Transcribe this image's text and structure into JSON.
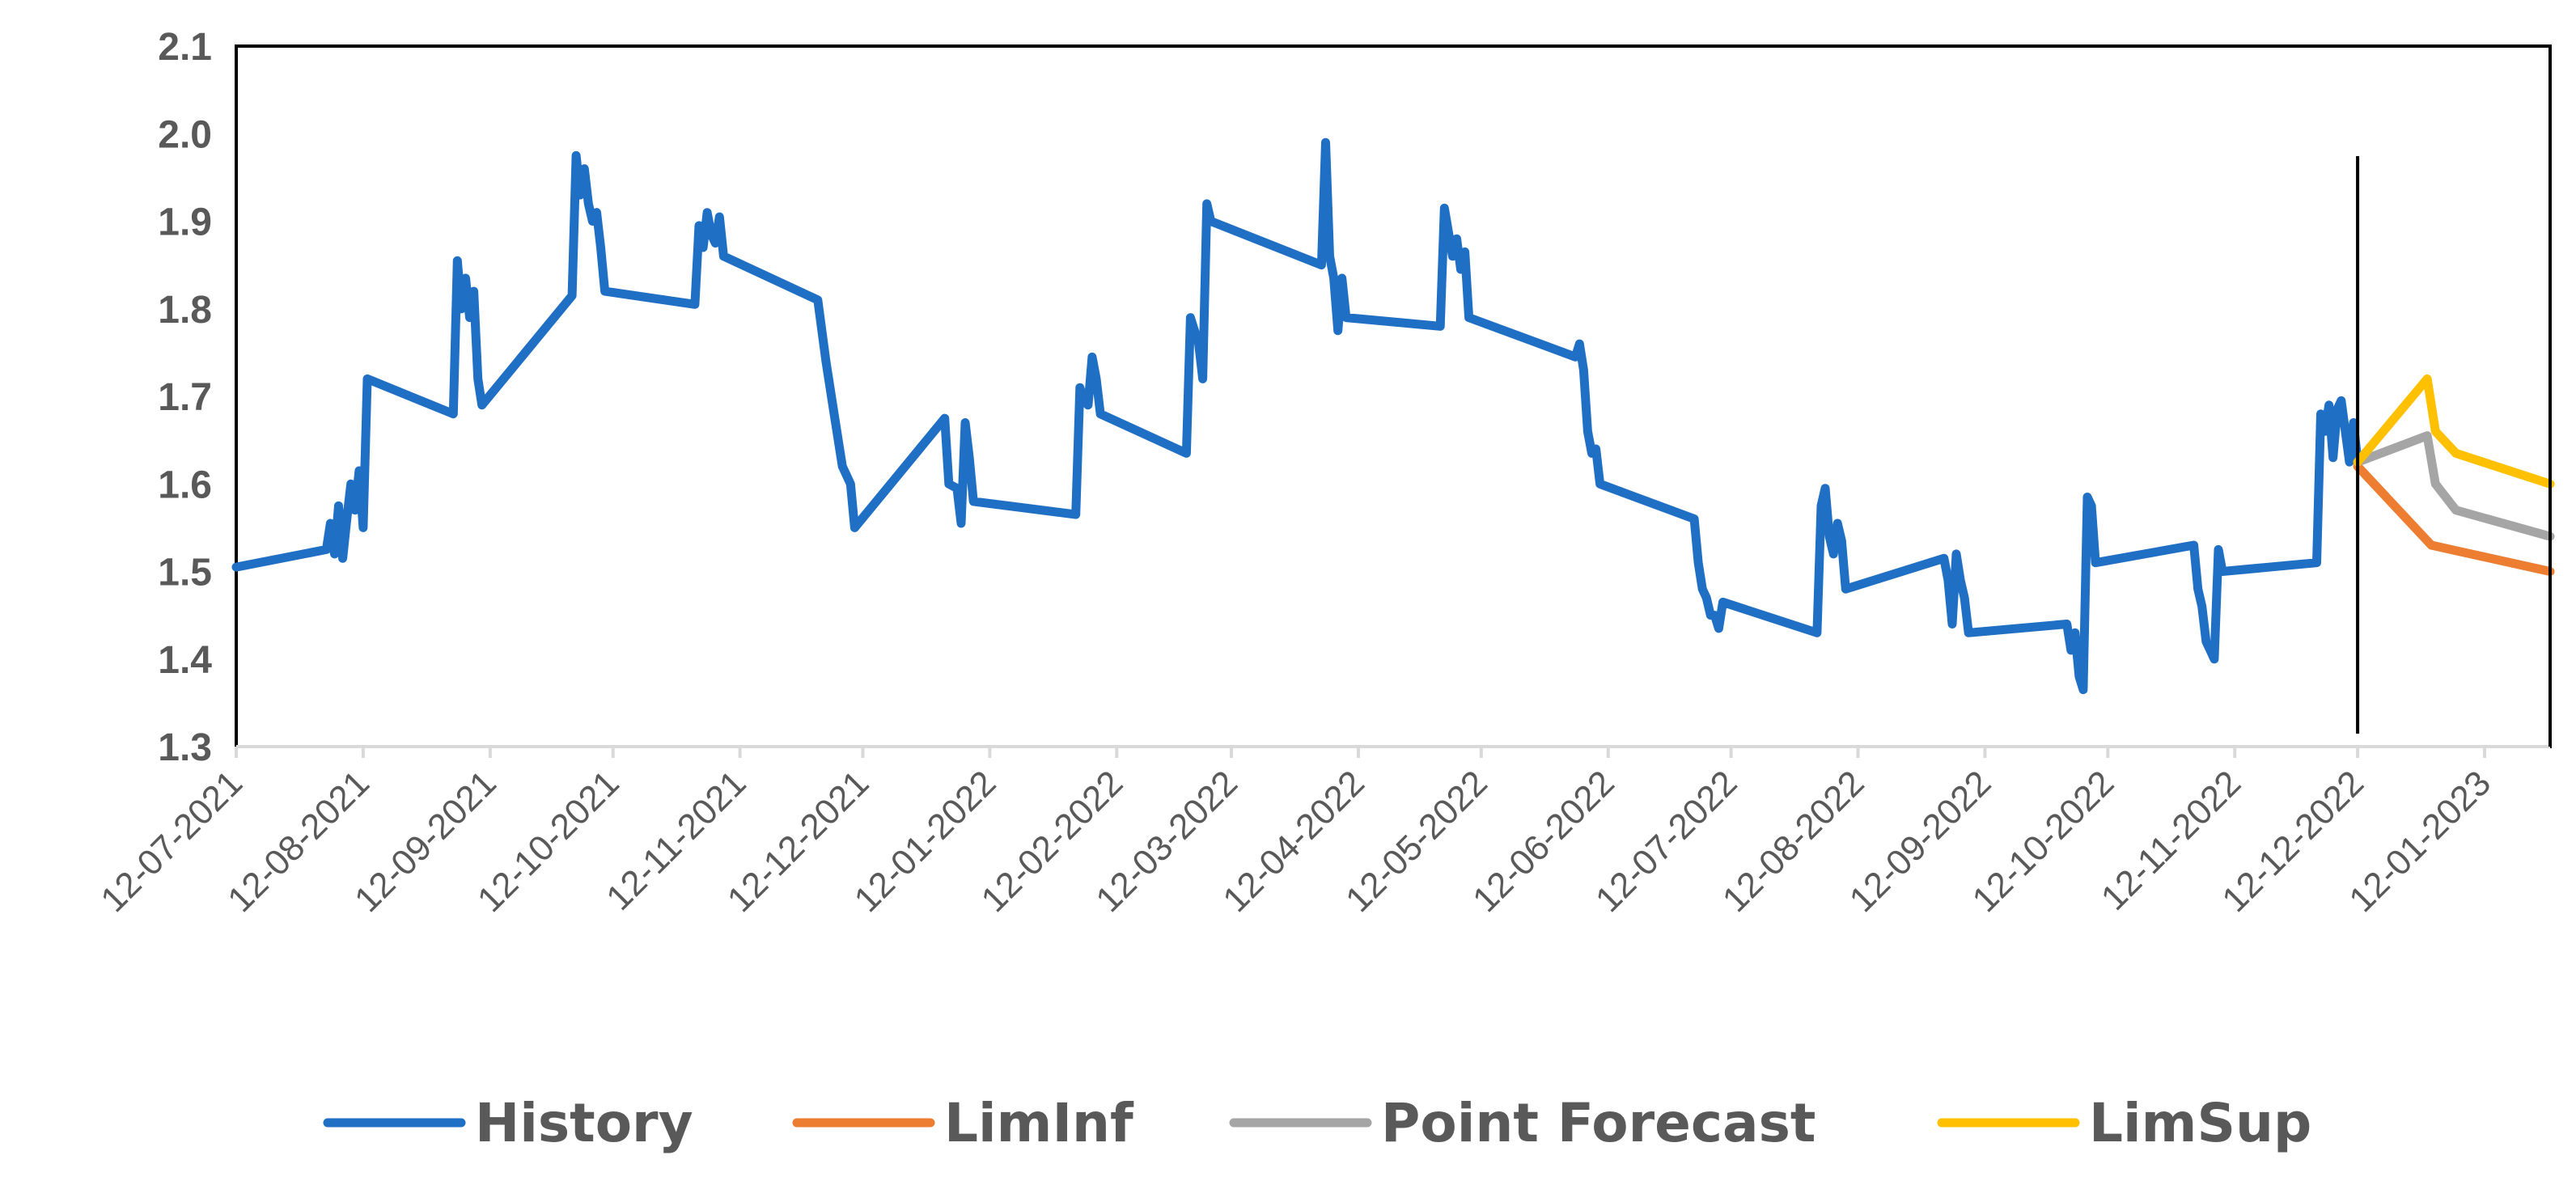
{
  "chart_data": {
    "type": "line",
    "ylim": [
      1.3,
      2.1
    ],
    "yticks": [
      "2.1",
      "2.0",
      "1.9",
      "1.8",
      "1.7",
      "1.6",
      "1.5",
      "1.4",
      "1.3"
    ],
    "yticks_values": [
      2.1,
      2.0,
      1.9,
      1.8,
      1.7,
      1.6,
      1.5,
      1.4,
      1.3
    ],
    "xlim": [
      "2021-07-12",
      "2023-01-28"
    ],
    "xticks": [
      "12-07-2021",
      "12-08-2021",
      "12-09-2021",
      "12-10-2021",
      "12-11-2021",
      "12-12-2021",
      "12-01-2022",
      "12-02-2022",
      "12-03-2022",
      "12-04-2022",
      "12-05-2022",
      "12-06-2022",
      "12-07-2022",
      "12-08-2022",
      "12-09-2022",
      "12-10-2022",
      "12-11-2022",
      "12-12-2022",
      "12-01-2023"
    ],
    "xticks_dates": [
      "2021-07-12",
      "2021-08-12",
      "2021-09-12",
      "2021-10-12",
      "2021-11-12",
      "2021-12-12",
      "2022-01-12",
      "2022-02-12",
      "2022-03-12",
      "2022-04-12",
      "2022-05-12",
      "2022-06-12",
      "2022-07-12",
      "2022-08-12",
      "2022-09-12",
      "2022-10-12",
      "2022-11-12",
      "2022-12-12",
      "2023-01-12"
    ],
    "forecast_start": "2022-12-12",
    "grid": false,
    "legend_position": "bottom",
    "series": [
      {
        "name": "History",
        "color": "#1F6FC5",
        "points": [
          [
            "2021-07-12",
            1.505
          ],
          [
            "2021-08-03",
            1.525
          ],
          [
            "2021-08-04",
            1.555
          ],
          [
            "2021-08-05",
            1.52
          ],
          [
            "2021-08-06",
            1.575
          ],
          [
            "2021-08-07",
            1.515
          ],
          [
            "2021-08-08",
            1.56
          ],
          [
            "2021-08-09",
            1.6
          ],
          [
            "2021-08-10",
            1.57
          ],
          [
            "2021-08-11",
            1.615
          ],
          [
            "2021-08-12",
            1.55
          ],
          [
            "2021-08-13",
            1.72
          ],
          [
            "2021-09-03",
            1.68
          ],
          [
            "2021-09-04",
            1.855
          ],
          [
            "2021-09-05",
            1.8
          ],
          [
            "2021-09-06",
            1.835
          ],
          [
            "2021-09-07",
            1.79
          ],
          [
            "2021-09-08",
            1.82
          ],
          [
            "2021-09-09",
            1.72
          ],
          [
            "2021-09-10",
            1.69
          ],
          [
            "2021-10-02",
            1.815
          ],
          [
            "2021-10-03",
            1.975
          ],
          [
            "2021-10-04",
            1.93
          ],
          [
            "2021-10-05",
            1.96
          ],
          [
            "2021-10-06",
            1.92
          ],
          [
            "2021-10-07",
            1.9
          ],
          [
            "2021-10-08",
            1.91
          ],
          [
            "2021-10-09",
            1.87
          ],
          [
            "2021-10-10",
            1.82
          ],
          [
            "2021-11-01",
            1.805
          ],
          [
            "2021-11-02",
            1.895
          ],
          [
            "2021-11-03",
            1.87
          ],
          [
            "2021-11-04",
            1.91
          ],
          [
            "2021-11-05",
            1.885
          ],
          [
            "2021-11-06",
            1.875
          ],
          [
            "2021-11-07",
            1.905
          ],
          [
            "2021-11-08",
            1.86
          ],
          [
            "2021-12-01",
            1.81
          ],
          [
            "2021-12-03",
            1.74
          ],
          [
            "2021-12-05",
            1.68
          ],
          [
            "2021-12-07",
            1.62
          ],
          [
            "2021-12-09",
            1.6
          ],
          [
            "2021-12-10",
            1.55
          ],
          [
            "2022-01-01",
            1.675
          ],
          [
            "2022-01-02",
            1.6
          ],
          [
            "2022-01-04",
            1.595
          ],
          [
            "2022-01-05",
            1.555
          ],
          [
            "2022-01-06",
            1.67
          ],
          [
            "2022-01-07",
            1.63
          ],
          [
            "2022-01-08",
            1.58
          ],
          [
            "2022-02-02",
            1.565
          ],
          [
            "2022-02-03",
            1.71
          ],
          [
            "2022-02-04",
            1.695
          ],
          [
            "2022-02-05",
            1.69
          ],
          [
            "2022-02-06",
            1.745
          ],
          [
            "2022-02-07",
            1.72
          ],
          [
            "2022-02-08",
            1.68
          ],
          [
            "2022-03-01",
            1.635
          ],
          [
            "2022-03-02",
            1.79
          ],
          [
            "2022-03-04",
            1.76
          ],
          [
            "2022-03-05",
            1.72
          ],
          [
            "2022-03-06",
            1.92
          ],
          [
            "2022-03-07",
            1.9
          ],
          [
            "2022-04-03",
            1.85
          ],
          [
            "2022-04-04",
            1.99
          ],
          [
            "2022-04-05",
            1.86
          ],
          [
            "2022-04-06",
            1.835
          ],
          [
            "2022-04-07",
            1.775
          ],
          [
            "2022-04-08",
            1.835
          ],
          [
            "2022-04-09",
            1.79
          ],
          [
            "2022-05-02",
            1.78
          ],
          [
            "2022-05-03",
            1.915
          ],
          [
            "2022-05-05",
            1.86
          ],
          [
            "2022-05-06",
            1.88
          ],
          [
            "2022-05-07",
            1.845
          ],
          [
            "2022-05-08",
            1.865
          ],
          [
            "2022-05-09",
            1.79
          ],
          [
            "2022-06-04",
            1.745
          ],
          [
            "2022-06-05",
            1.76
          ],
          [
            "2022-06-06",
            1.73
          ],
          [
            "2022-06-07",
            1.66
          ],
          [
            "2022-06-08",
            1.635
          ],
          [
            "2022-06-09",
            1.64
          ],
          [
            "2022-06-10",
            1.6
          ],
          [
            "2022-07-03",
            1.56
          ],
          [
            "2022-07-04",
            1.51
          ],
          [
            "2022-07-05",
            1.48
          ],
          [
            "2022-07-06",
            1.47
          ],
          [
            "2022-07-07",
            1.45
          ],
          [
            "2022-07-08",
            1.45
          ],
          [
            "2022-07-09",
            1.435
          ],
          [
            "2022-07-10",
            1.465
          ],
          [
            "2022-08-02",
            1.43
          ],
          [
            "2022-08-03",
            1.575
          ],
          [
            "2022-08-04",
            1.595
          ],
          [
            "2022-08-05",
            1.54
          ],
          [
            "2022-08-06",
            1.52
          ],
          [
            "2022-08-07",
            1.555
          ],
          [
            "2022-08-08",
            1.535
          ],
          [
            "2022-08-09",
            1.48
          ],
          [
            "2022-09-02",
            1.515
          ],
          [
            "2022-09-03",
            1.49
          ],
          [
            "2022-09-04",
            1.44
          ],
          [
            "2022-09-05",
            1.52
          ],
          [
            "2022-09-06",
            1.49
          ],
          [
            "2022-09-07",
            1.47
          ],
          [
            "2022-09-08",
            1.43
          ],
          [
            "2022-10-02",
            1.44
          ],
          [
            "2022-10-03",
            1.41
          ],
          [
            "2022-10-04",
            1.43
          ],
          [
            "2022-10-05",
            1.38
          ],
          [
            "2022-10-06",
            1.365
          ],
          [
            "2022-10-07",
            1.585
          ],
          [
            "2022-10-08",
            1.575
          ],
          [
            "2022-10-09",
            1.51
          ],
          [
            "2022-11-02",
            1.53
          ],
          [
            "2022-11-03",
            1.48
          ],
          [
            "2022-11-04",
            1.46
          ],
          [
            "2022-11-05",
            1.42
          ],
          [
            "2022-11-06",
            1.41
          ],
          [
            "2022-11-07",
            1.4
          ],
          [
            "2022-11-08",
            1.525
          ],
          [
            "2022-11-09",
            1.5
          ],
          [
            "2022-12-02",
            1.51
          ],
          [
            "2022-12-03",
            1.68
          ],
          [
            "2022-12-04",
            1.66
          ],
          [
            "2022-12-05",
            1.69
          ],
          [
            "2022-12-06",
            1.63
          ],
          [
            "2022-12-07",
            1.685
          ],
          [
            "2022-12-08",
            1.695
          ],
          [
            "2022-12-09",
            1.66
          ],
          [
            "2022-12-10",
            1.625
          ],
          [
            "2022-12-11",
            1.67
          ],
          [
            "2022-12-12",
            1.625
          ]
        ]
      },
      {
        "name": "LimInf",
        "color": "#ED7D31",
        "points": [
          [
            "2022-12-12",
            1.62
          ],
          [
            "2022-12-30",
            1.53
          ],
          [
            "2023-01-28",
            1.5
          ]
        ]
      },
      {
        "name": "Point Forecast",
        "color": "#A5A5A5",
        "points": [
          [
            "2022-12-12",
            1.625
          ],
          [
            "2022-12-29",
            1.655
          ],
          [
            "2022-12-31",
            1.6
          ],
          [
            "2023-01-05",
            1.57
          ],
          [
            "2023-01-28",
            1.54
          ]
        ]
      },
      {
        "name": "LimSup",
        "color": "#FFC000",
        "points": [
          [
            "2022-12-12",
            1.625
          ],
          [
            "2022-12-29",
            1.72
          ],
          [
            "2022-12-31",
            1.66
          ],
          [
            "2023-01-05",
            1.635
          ],
          [
            "2023-01-28",
            1.6
          ]
        ]
      }
    ]
  }
}
